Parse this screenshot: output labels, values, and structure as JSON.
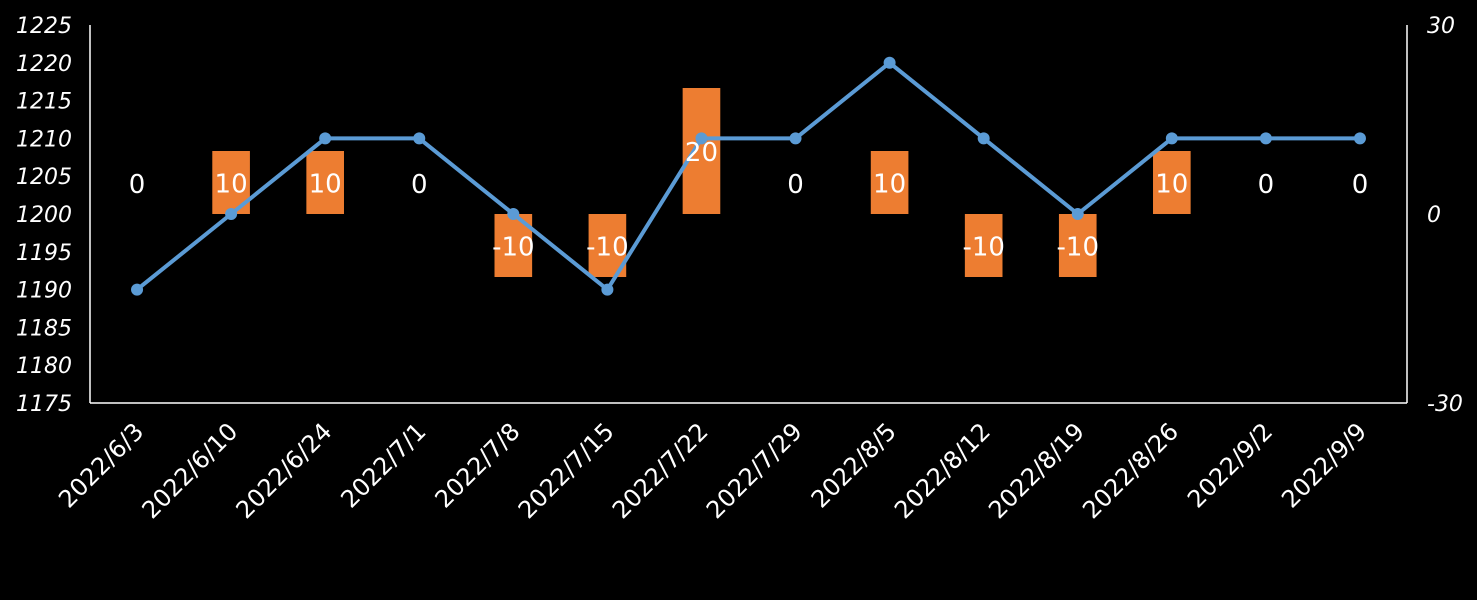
{
  "chart_data": {
    "type": "bar+line",
    "title": "",
    "categories": [
      "2022/6/3",
      "2022/6/10",
      "2022/6/24",
      "2022/7/1",
      "2022/7/8",
      "2022/7/15",
      "2022/7/22",
      "2022/7/29",
      "2022/8/5",
      "2022/8/12",
      "2022/8/19",
      "2022/8/26",
      "2022/9/2",
      "2022/9/9"
    ],
    "line_series": {
      "name": "",
      "axis": "left",
      "color": "#5b9bd5",
      "values": [
        1190,
        1200,
        1210,
        1210,
        1200,
        1190,
        1210,
        1210,
        1220,
        1210,
        1200,
        1210,
        1210,
        1210
      ]
    },
    "bar_series": {
      "name": "",
      "axis": "right",
      "color": "#ed7d31",
      "values": [
        0,
        10,
        10,
        0,
        -10,
        -10,
        20,
        0,
        10,
        -10,
        -10,
        10,
        0,
        0
      ],
      "data_labels": [
        "0",
        "10",
        "10",
        "0",
        "-10",
        "-10",
        "20",
        "0",
        "10",
        "-10",
        "-10",
        "10",
        "0",
        "0"
      ]
    },
    "y_left": {
      "min": 1175,
      "max": 1225,
      "ticks": [
        "1225",
        "1220",
        "1215",
        "1210",
        "1205",
        "1200",
        "1195",
        "1190",
        "1185",
        "1180",
        "1175"
      ]
    },
    "y_right": {
      "min": -30,
      "max": 30,
      "ticks": [
        "30",
        "0",
        "-30"
      ]
    },
    "grid": false,
    "legend": "none"
  }
}
